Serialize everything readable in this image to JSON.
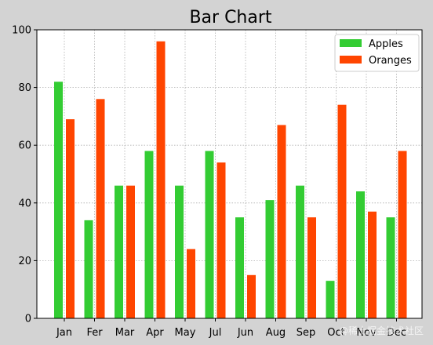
{
  "chart_data": {
    "type": "bar",
    "title": "Bar Chart",
    "xlabel": "",
    "ylabel": "",
    "categories": [
      "Jan",
      "Fer",
      "Mar",
      "Apr",
      "May",
      "Jul",
      "Jun",
      "Aug",
      "Sep",
      "Oct",
      "Nov",
      "Dec"
    ],
    "series": [
      {
        "name": "Apples",
        "color": "#33cc33",
        "values": [
          82,
          34,
          46,
          58,
          46,
          58,
          35,
          41,
          46,
          13,
          44,
          35
        ]
      },
      {
        "name": "Oranges",
        "color": "#ff4500",
        "values": [
          69,
          76,
          46,
          96,
          24,
          54,
          15,
          67,
          35,
          74,
          37,
          58
        ]
      }
    ],
    "ylim": [
      0,
      100
    ],
    "yticks": [
      0,
      20,
      40,
      60,
      80,
      100
    ],
    "grid": true,
    "legend_position": "top-right"
  },
  "watermark": "@稀土掘金技术社区"
}
